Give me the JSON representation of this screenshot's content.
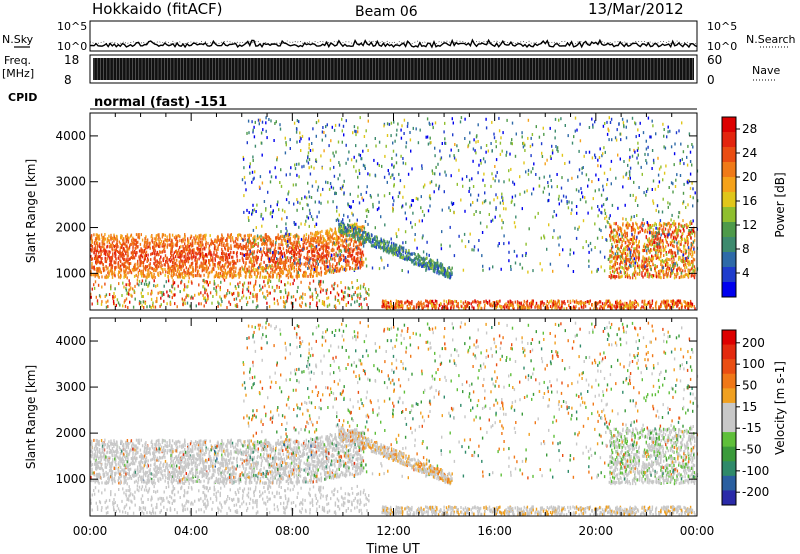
{
  "header": {
    "site": "Hokkaido (fitACF)",
    "beam": "Beam 06",
    "date": "13/Mar/2012"
  },
  "status_panels": {
    "nsky_label": "N.Sky",
    "nsearch_label": "N.Search",
    "noise_ticks": [
      "10^5",
      "10^0"
    ],
    "freq_label": "Freq.",
    "freq_unit": "[MHz]",
    "freq_ticks": [
      "18",
      "8"
    ],
    "nave_label": "Nave",
    "nave_ticks": [
      "60",
      "0"
    ],
    "cpid_label": "CPID",
    "cpid_text": "normal (fast) -151"
  },
  "chart_data": [
    {
      "type": "heatmap",
      "name": "power",
      "ylabel": "Slant Range [km]",
      "xlabel": "",
      "x_ticks": [
        "00:00",
        "04:00",
        "08:00",
        "12:00",
        "16:00",
        "20:00",
        "00:00"
      ],
      "x_range_hours": [
        0,
        24
      ],
      "y_ticks": [
        "1000",
        "2000",
        "3000",
        "4000"
      ],
      "ylim": [
        200,
        4500
      ],
      "colorbar": {
        "label": "Power [dB]",
        "ticks": [
          "4",
          "8",
          "12",
          "16",
          "20",
          "24",
          "28"
        ],
        "range": [
          0,
          30
        ],
        "colors": [
          "#0000ee",
          "#1f3ccc",
          "#2e6aa8",
          "#3d8a6e",
          "#4e9a4a",
          "#8fbf2f",
          "#e0c61a",
          "#f5a21a",
          "#f07a18",
          "#ea4d12",
          "#e3250e",
          "#dd0000"
        ]
      }
    },
    {
      "type": "heatmap",
      "name": "velocity",
      "ylabel": "Slant Range [km]",
      "xlabel": "Time UT",
      "x_ticks": [
        "00:00",
        "04:00",
        "08:00",
        "12:00",
        "16:00",
        "20:00",
        "00:00"
      ],
      "x_range_hours": [
        0,
        24
      ],
      "y_ticks": [
        "1000",
        "2000",
        "3000",
        "4000"
      ],
      "ylim": [
        200,
        4500
      ],
      "colorbar": {
        "label": "Velocity [m s-1]",
        "ticks": [
          "200",
          "100",
          "50",
          "15",
          "-15",
          "-50",
          "-100",
          "-200"
        ],
        "range": [
          -250,
          250
        ],
        "colors": [
          "#2a2aa8",
          "#2a5fa0",
          "#2f8a6a",
          "#3a9a3a",
          "#5fbf3a",
          "#c8c8c8",
          "#c8c8c8",
          "#f0a020",
          "#f07818",
          "#ea4e12",
          "#e32a0e",
          "#dd0000"
        ]
      }
    }
  ]
}
